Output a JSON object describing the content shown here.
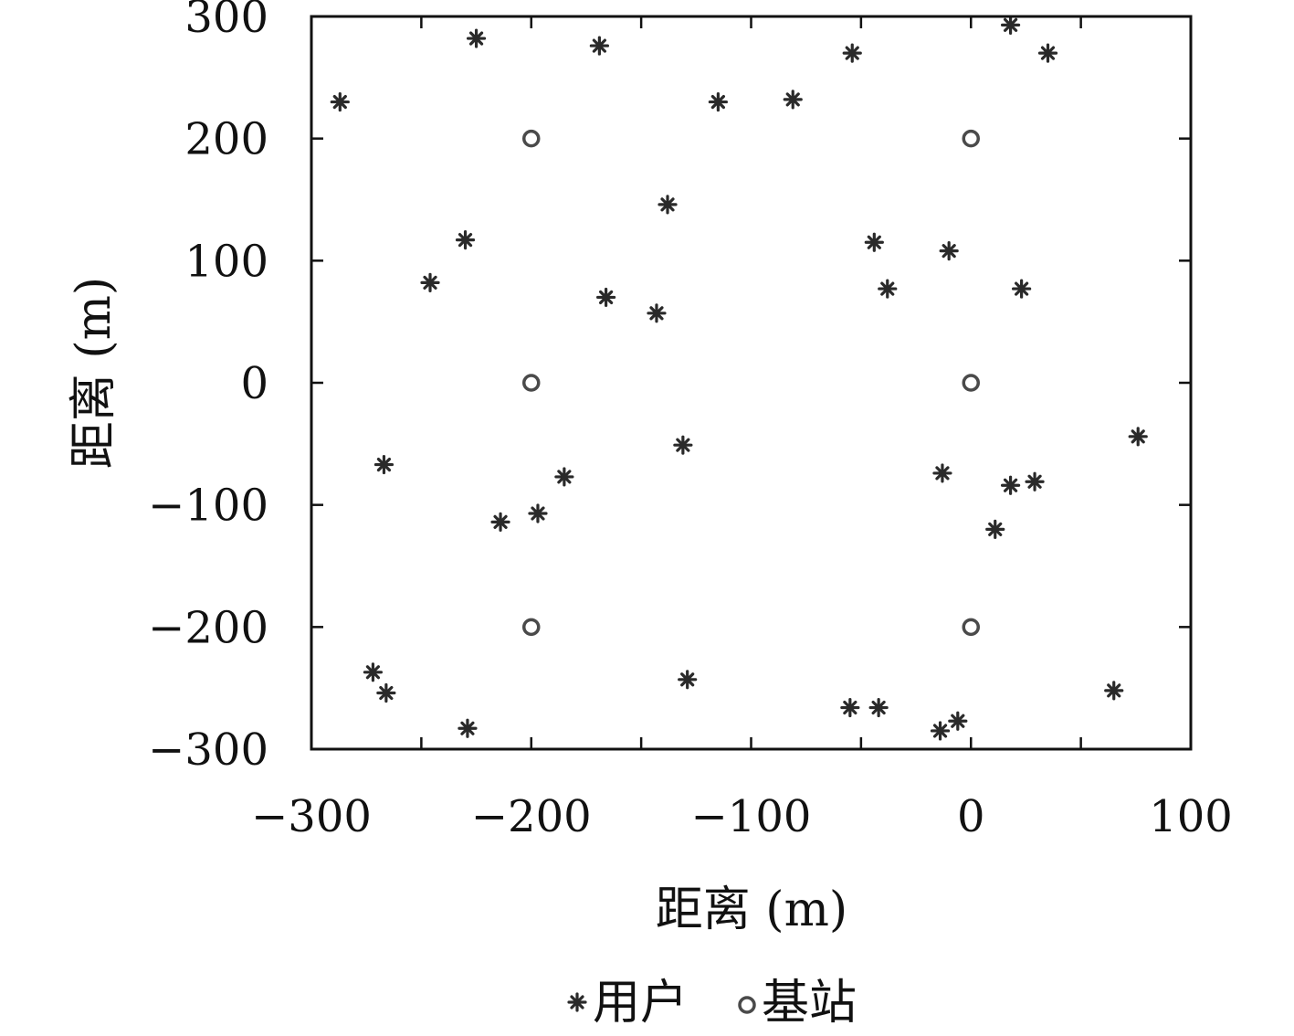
{
  "chart_data": {
    "type": "scatter",
    "title": "",
    "xlabel": "距离 (m)",
    "ylabel": "距离 (m)",
    "xlim": [
      -300,
      100
    ],
    "ylim": [
      -300,
      300
    ],
    "xticks": [
      {
        "value": -300,
        "label": "−300"
      },
      {
        "value": -200,
        "label": "−200"
      },
      {
        "value": -100,
        "label": "−100"
      },
      {
        "value": 0,
        "label": "0"
      },
      {
        "value": 100,
        "label": "100"
      }
    ],
    "yticks": [
      {
        "value": 300,
        "label": "300"
      },
      {
        "value": 200,
        "label": "200"
      },
      {
        "value": 100,
        "label": "100"
      },
      {
        "value": 0,
        "label": "0"
      },
      {
        "value": -100,
        "label": "−100"
      },
      {
        "value": -200,
        "label": "−200"
      },
      {
        "value": -300,
        "label": "−300"
      }
    ],
    "grid": false,
    "legend_position": "bottom",
    "series": [
      {
        "name": "用户",
        "marker": "star",
        "color": "#2a2a2a",
        "points": [
          [
            -287,
            230
          ],
          [
            -225,
            282
          ],
          [
            -169,
            276
          ],
          [
            -115,
            230
          ],
          [
            -81,
            232
          ],
          [
            -54,
            270
          ],
          [
            18,
            293
          ],
          [
            35,
            270
          ],
          [
            -138,
            146
          ],
          [
            -230,
            117
          ],
          [
            -246,
            82
          ],
          [
            -166,
            70
          ],
          [
            -143,
            57
          ],
          [
            -44,
            115
          ],
          [
            -10,
            108
          ],
          [
            -38,
            77
          ],
          [
            23,
            77
          ],
          [
            -267,
            -67
          ],
          [
            -131,
            -51
          ],
          [
            -185,
            -77
          ],
          [
            -197,
            -107
          ],
          [
            -214,
            -114
          ],
          [
            -13,
            -74
          ],
          [
            18,
            -84
          ],
          [
            29,
            -81
          ],
          [
            11,
            -120
          ],
          [
            76,
            -44
          ],
          [
            -272,
            -237
          ],
          [
            -266,
            -254
          ],
          [
            -229,
            -283
          ],
          [
            -129,
            -243
          ],
          [
            -55,
            -266
          ],
          [
            -42,
            -266
          ],
          [
            -14,
            -285
          ],
          [
            -6,
            -277
          ],
          [
            65,
            -252
          ]
        ]
      },
      {
        "name": "基站",
        "marker": "circle",
        "color": "#4a4a4a",
        "points": [
          [
            -200,
            200
          ],
          [
            0,
            200
          ],
          [
            -200,
            0
          ],
          [
            0,
            0
          ],
          [
            -200,
            -200
          ],
          [
            0,
            -200
          ]
        ]
      }
    ]
  }
}
